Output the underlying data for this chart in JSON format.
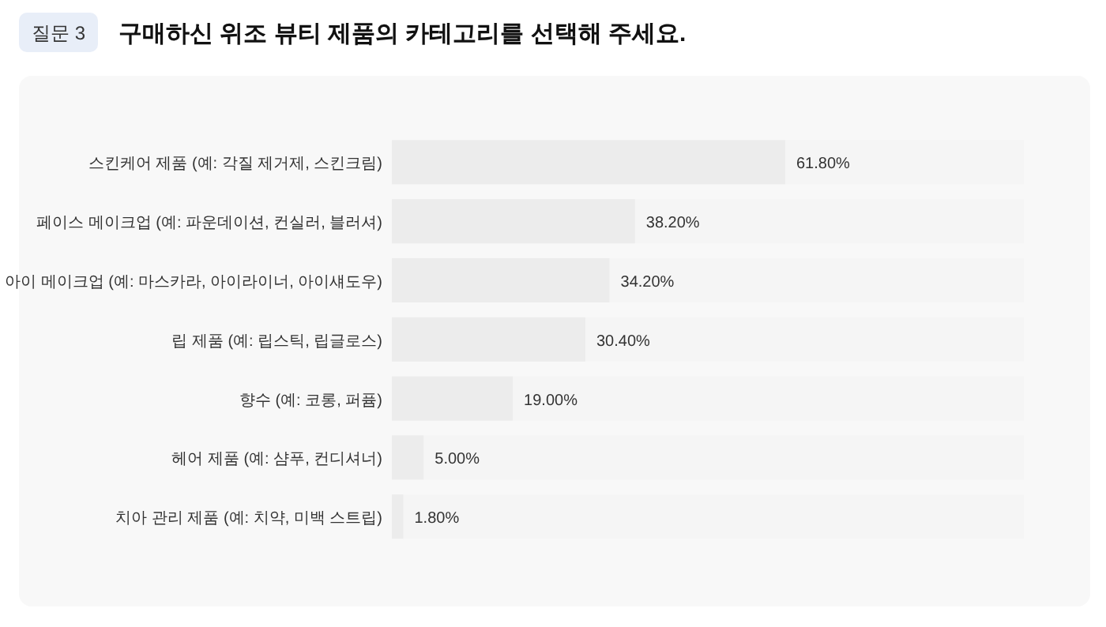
{
  "chart_data": {
    "type": "bar",
    "orientation": "horizontal",
    "title": "구매하신 위조 뷰티 제품의 카테고리를 선택해 주세요.",
    "annotations": [
      "질문 3"
    ],
    "categories": [
      "스킨케어 제품 (예: 각질 제거제, 스킨크림)",
      "페이스 메이크업 (예: 파운데이션, 컨실러, 블러셔)",
      "아이 메이크업 (예: 마스카라, 아이라이너, 아이섀도우)",
      "립 제품 (예: 립스틱, 립글로스)",
      "향수 (예: 코롱, 퍼퓸)",
      "헤어 제품 (예: 샴푸, 컨디셔너)",
      "치아 관리 제품 (예: 치약, 미백 스트립)"
    ],
    "values": [
      61.8,
      38.2,
      34.2,
      30.4,
      19.0,
      5.0,
      1.8
    ],
    "value_labels": [
      "61.80%",
      "38.20%",
      "34.20%",
      "30.40%",
      "19.00%",
      "5.00%",
      "1.80%"
    ],
    "color": "#ececec"
  }
}
